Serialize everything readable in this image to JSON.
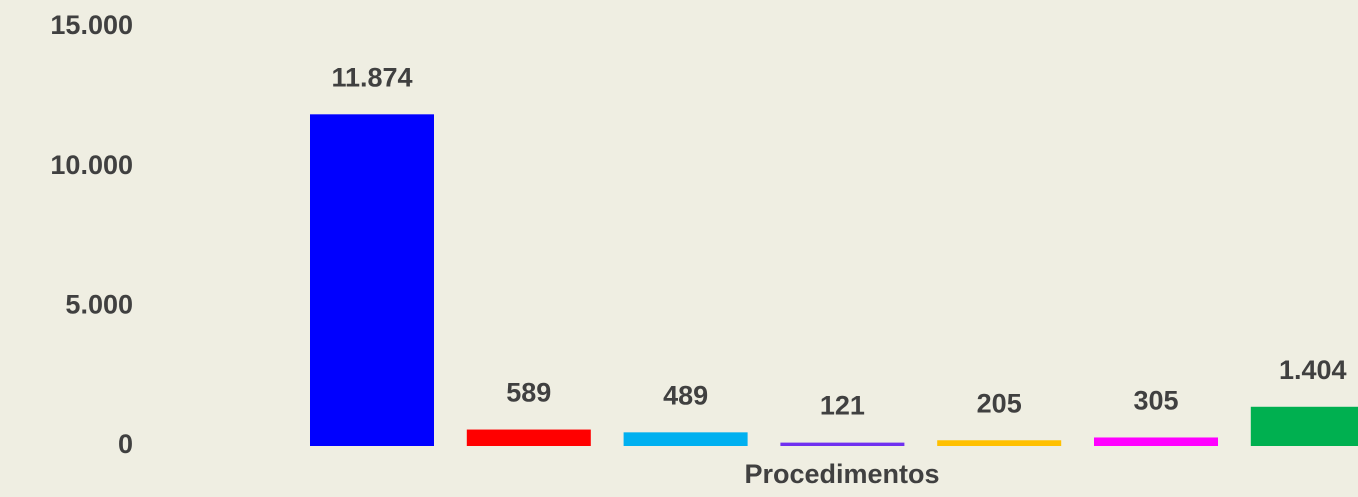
{
  "chart_data": {
    "type": "bar",
    "x_label": "Procedimentos",
    "values": [
      11874,
      589,
      489,
      121,
      205,
      305,
      1404
    ],
    "value_labels": [
      "11.874",
      "589",
      "489",
      "121",
      "205",
      "305",
      "1.404"
    ],
    "colors": [
      "#0000ff",
      "#ff0000",
      "#00b0f0",
      "#7030f0",
      "#ffc000",
      "#ff00ff",
      "#00b050"
    ],
    "ylim": [
      0,
      15000
    ],
    "yticks": [
      0,
      {
        "value": 5000,
        "label": "5.000"
      },
      {
        "value": 10000,
        "label": "10.000"
      },
      {
        "value": 15000,
        "label": "15.000"
      }
    ],
    "grid": false
  }
}
